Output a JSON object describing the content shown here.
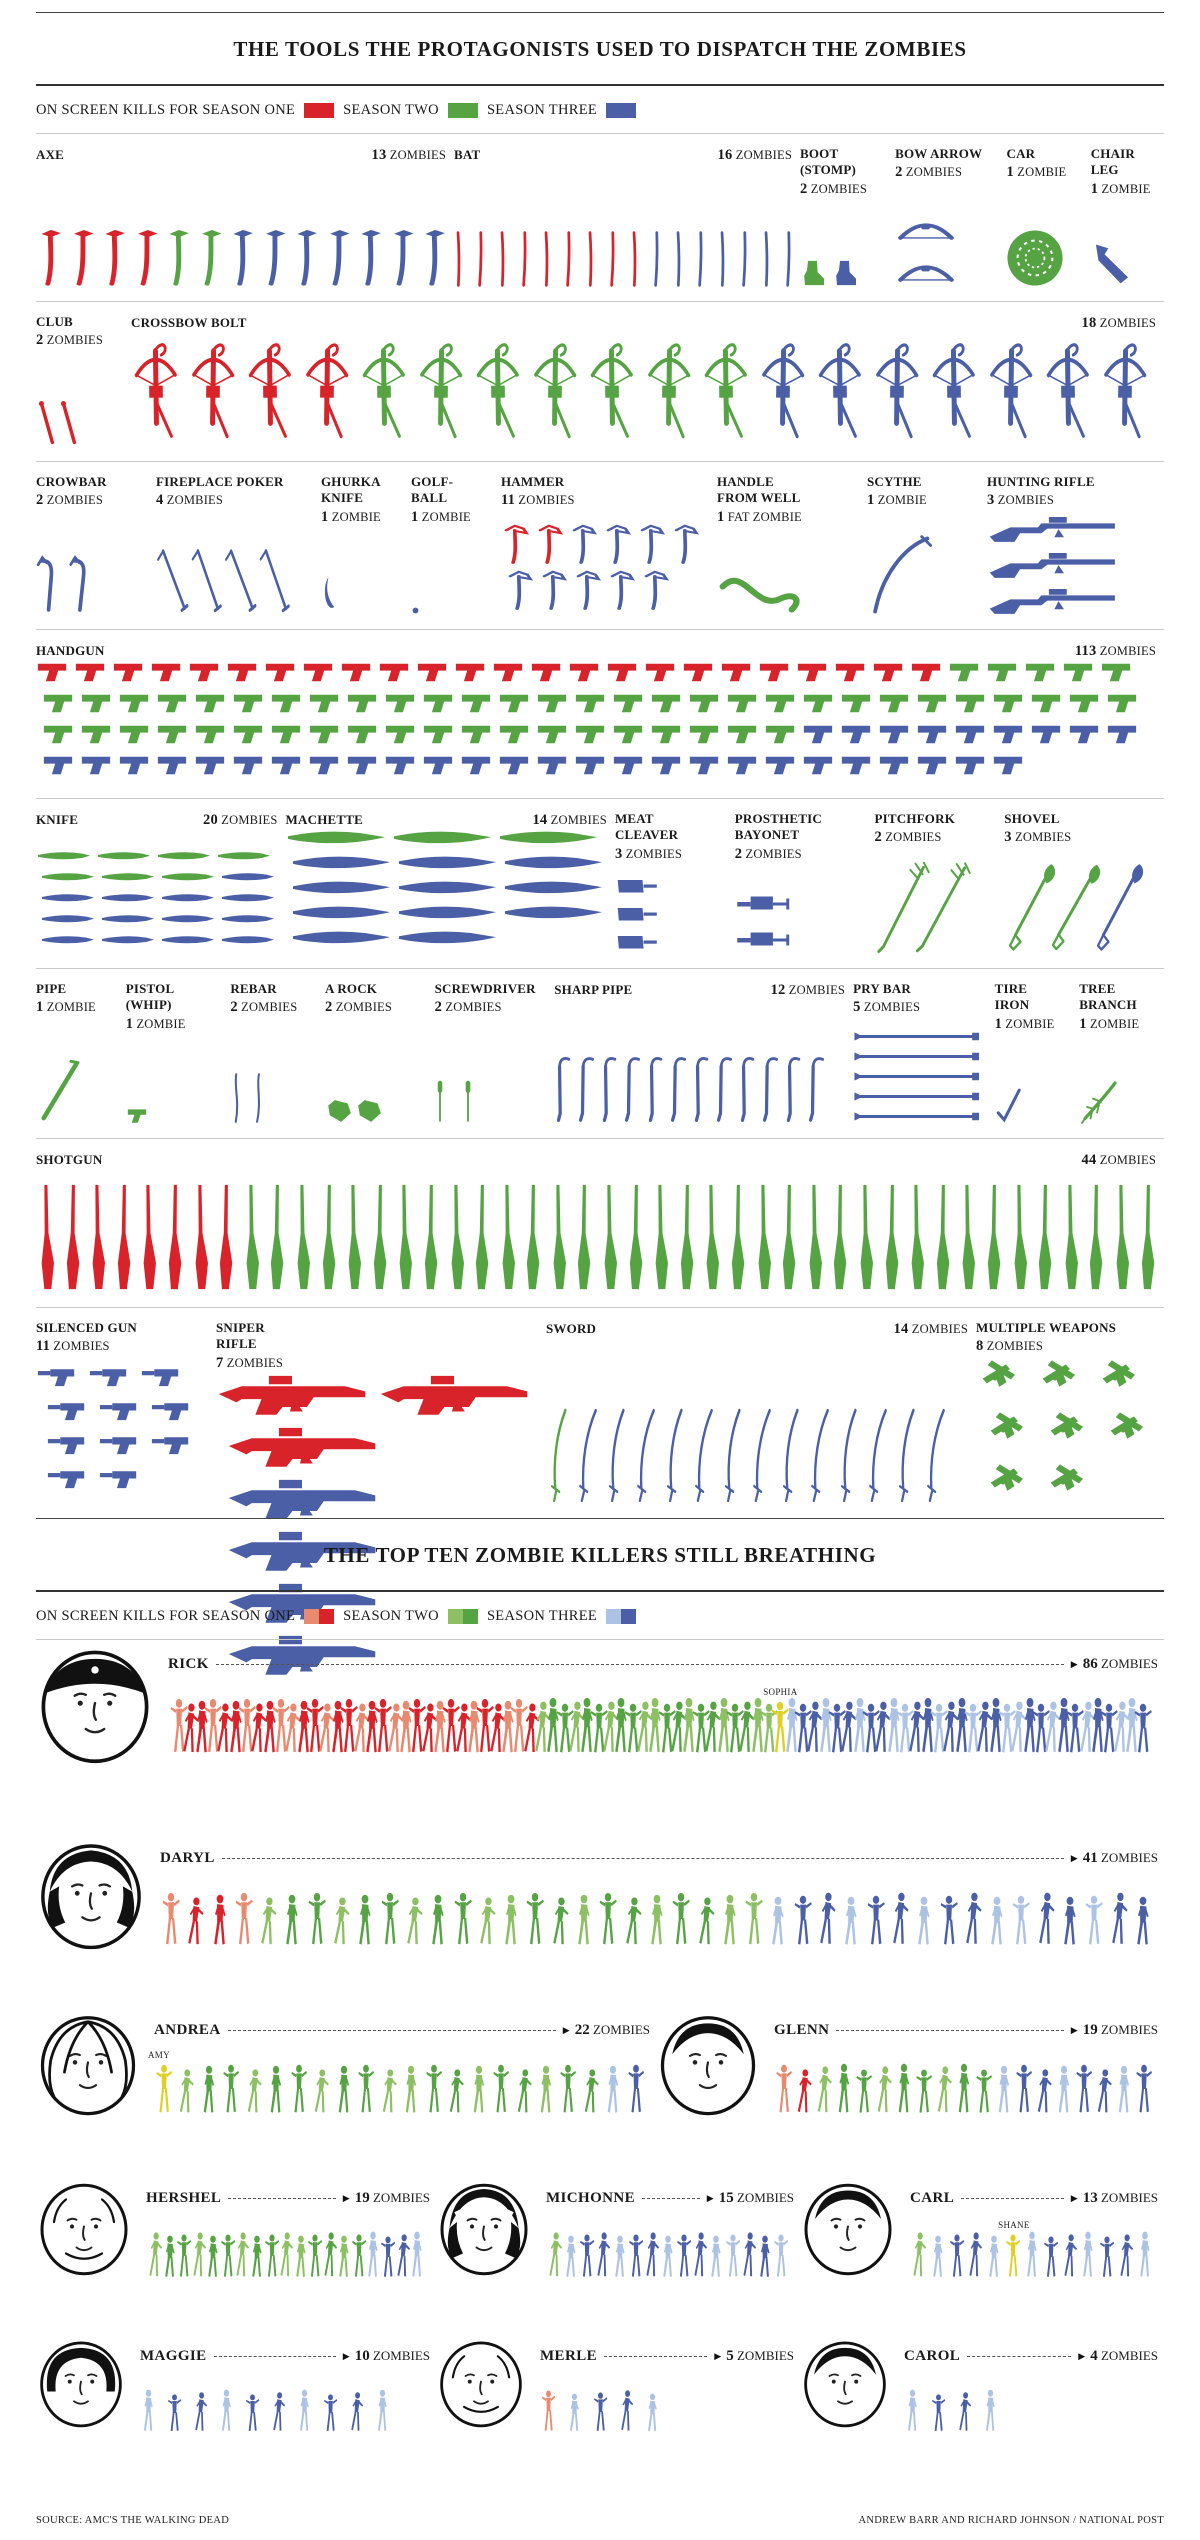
{
  "page": {
    "section1_title": "THE TOOLS THE PROTAGONISTS USED TO DISPATCH THE ZOMBIES",
    "section2_title": "THE TOP TEN ZOMBIE KILLERS STILL BREATHING",
    "source": "SOURCE: AMC'S  THE WALKING DEAD",
    "credit": "ANDREW BARR AND RICHARD JOHNSON / NATIONAL POST"
  },
  "legend1": {
    "season1_label": "ON SCREEN KILLS FOR SEASON ONE",
    "season2_label": "SEASON TWO",
    "season3_label": "SEASON THREE"
  },
  "legend2": {
    "season1_label": "ON SCREEN KILLS FOR SEASON ONE",
    "season2_label": "SEASON TWO",
    "season3_label": "SEASON THREE"
  },
  "colors": {
    "season1": "#d9232a",
    "season1_light": "#e88a70",
    "season2": "#56a344",
    "season2_light": "#8cc063",
    "season3": "#4a5fa5",
    "season3_light": "#adc3e4",
    "highlight": "#e0d026",
    "text": "#1a1a1a"
  },
  "chart_data": {
    "type": "pictogram",
    "unit": "on-screen zombie kills",
    "seasons": [
      "SEASON ONE",
      "SEASON TWO",
      "SEASON THREE"
    ],
    "weapon_rows": [
      [
        {
          "id": "axe",
          "name": [
            "AXE"
          ],
          "count": 13,
          "unit": "ZOMBIES",
          "label": "inline",
          "icon": "axe",
          "seasons": {
            "season1": 4,
            "season2": 2,
            "season3": 7
          }
        },
        {
          "id": "bat",
          "name": [
            "BAT"
          ],
          "count": 16,
          "unit": "ZOMBIES",
          "label": "inline",
          "icon": "bat",
          "seasons": {
            "season1": 9,
            "season2": 0,
            "season3": 7
          }
        },
        {
          "id": "boot",
          "name": [
            "BOOT",
            "(STOMP)"
          ],
          "count": 2,
          "unit": "ZOMBIES",
          "label": "stack",
          "icon": "boot",
          "seasons": {
            "season1": 0,
            "season2": 1,
            "season3": 1
          }
        },
        {
          "id": "bowarrow",
          "name": [
            "BOW ARROW"
          ],
          "count": 2,
          "unit": "ZOMBIES",
          "label": "stack",
          "icon": "bow",
          "seasons": {
            "season1": 0,
            "season2": 0,
            "season3": 2
          }
        },
        {
          "id": "car",
          "name": [
            "CAR"
          ],
          "count": 1,
          "unit": "ZOMBIE",
          "label": "stack",
          "icon": "wheel",
          "seasons": {
            "season1": 0,
            "season2": 1,
            "season3": 0
          }
        },
        {
          "id": "chairleg",
          "name": [
            "CHAIR",
            "LEG"
          ],
          "count": 1,
          "unit": "ZOMBIE",
          "label": "stack",
          "icon": "chairleg",
          "seasons": {
            "season1": 0,
            "season2": 0,
            "season3": 1
          }
        }
      ],
      [
        {
          "id": "club",
          "name": [
            "CLUB"
          ],
          "count": 2,
          "unit": "ZOMBIES",
          "label": "stack",
          "icon": "club",
          "seasons": {
            "season1": 2,
            "season2": 0,
            "season3": 0
          }
        },
        {
          "id": "crossbow",
          "name": [
            "CROSSBOW BOLT"
          ],
          "count": 18,
          "unit": "ZOMBIES",
          "label": "inline",
          "icon": "crossbow",
          "seasons": {
            "season1": 4,
            "season2": 7,
            "season3": 7
          }
        }
      ],
      [
        {
          "id": "crowbar",
          "name": [
            "CROWBAR"
          ],
          "count": 2,
          "unit": "ZOMBIES",
          "label": "stack",
          "icon": "crowbar",
          "seasons": {
            "season1": 0,
            "season2": 0,
            "season3": 2
          }
        },
        {
          "id": "poker",
          "name": [
            "FIREPLACE POKER"
          ],
          "count": 4,
          "unit": "ZOMBIES",
          "label": "stack",
          "icon": "poker",
          "seasons": {
            "season1": 0,
            "season2": 0,
            "season3": 4
          }
        },
        {
          "id": "ghurka",
          "name": [
            "GHURKA",
            "KNIFE"
          ],
          "count": 1,
          "unit": "ZOMBIE",
          "label": "stack",
          "icon": "ghurka",
          "seasons": {
            "season1": 0,
            "season2": 0,
            "season3": 1
          }
        },
        {
          "id": "golfball",
          "name": [
            "GOLF-",
            "BALL"
          ],
          "count": 1,
          "unit": "ZOMBIE",
          "label": "stack",
          "icon": "golf",
          "seasons": {
            "season1": 0,
            "season2": 0,
            "season3": 1
          }
        },
        {
          "id": "hammer",
          "name": [
            "HAMMER"
          ],
          "count": 11,
          "unit": "ZOMBIES",
          "label": "stack",
          "icon": "hammer",
          "seasons": {
            "season1": 2,
            "season2": 0,
            "season3": 9
          }
        },
        {
          "id": "wellhandle",
          "name": [
            "HANDLE",
            "FROM WELL"
          ],
          "count": 1,
          "unit": "FAT ZOMBIE",
          "label": "stack",
          "icon": "wellhandle",
          "seasons": {
            "season1": 0,
            "season2": 1,
            "season3": 0
          }
        },
        {
          "id": "scythe",
          "name": [
            "SCYTHE"
          ],
          "count": 1,
          "unit": "ZOMBIE",
          "label": "stack",
          "icon": "scythe",
          "seasons": {
            "season1": 0,
            "season2": 0,
            "season3": 1
          }
        },
        {
          "id": "huntingrifle",
          "name": [
            "HUNTING RIFLE"
          ],
          "count": 3,
          "unit": "ZOMBIES",
          "label": "stack",
          "icon": "huntingrifle",
          "seasons": {
            "season1": 0,
            "season2": 0,
            "season3": 3
          }
        }
      ],
      [
        {
          "id": "handgun",
          "name": [
            "HANDGUN"
          ],
          "count": 113,
          "unit": "ZOMBIES",
          "label": "inline",
          "icon": "handgun",
          "seasons": {
            "season1": 24,
            "season2": 54,
            "season3": 35
          }
        }
      ],
      [
        {
          "id": "knife",
          "name": [
            "KNIFE"
          ],
          "count": 20,
          "unit": "ZOMBIES",
          "label": "inline",
          "icon": "knife",
          "seasons": {
            "season1": 0,
            "season2": 7,
            "season3": 13
          }
        },
        {
          "id": "machete",
          "name": [
            "MACHETTE"
          ],
          "count": 14,
          "unit": "ZOMBIES",
          "label": "inline",
          "icon": "machete",
          "seasons": {
            "season1": 0,
            "season2": 3,
            "season3": 11
          }
        },
        {
          "id": "cleaver",
          "name": [
            "MEAT",
            "CLEAVER"
          ],
          "count": 3,
          "unit": "ZOMBIES",
          "label": "stack",
          "icon": "cleaver",
          "seasons": {
            "season1": 0,
            "season2": 0,
            "season3": 3
          }
        },
        {
          "id": "bayonet",
          "name": [
            "PROSTHETIC",
            "BAYONET"
          ],
          "count": 2,
          "unit": "ZOMBIES",
          "label": "stack",
          "icon": "bayonet",
          "seasons": {
            "season1": 0,
            "season2": 0,
            "season3": 2
          }
        },
        {
          "id": "pitchfork",
          "name": [
            "PITCHFORK"
          ],
          "count": 2,
          "unit": "ZOMBIES",
          "label": "stack",
          "icon": "pitchfork",
          "seasons": {
            "season1": 0,
            "season2": 2,
            "season3": 0
          }
        },
        {
          "id": "shovel",
          "name": [
            "SHOVEL"
          ],
          "count": 3,
          "unit": "ZOMBIES",
          "label": "stack",
          "icon": "shovel",
          "seasons": {
            "season1": 0,
            "season2": 2,
            "season3": 1
          }
        }
      ],
      [
        {
          "id": "pipe",
          "name": [
            "PIPE"
          ],
          "count": 1,
          "unit": "ZOMBIE",
          "label": "stack",
          "icon": "pipe",
          "seasons": {
            "season1": 0,
            "season2": 1,
            "season3": 0
          }
        },
        {
          "id": "pistolwhip",
          "name": [
            "PISTOL",
            "(WHIP)"
          ],
          "count": 1,
          "unit": "ZOMBIE",
          "label": "stack",
          "icon": "pistolwhip",
          "seasons": {
            "season1": 0,
            "season2": 1,
            "season3": 0
          }
        },
        {
          "id": "rebar",
          "name": [
            "REBAR"
          ],
          "count": 2,
          "unit": "ZOMBIES",
          "label": "stack",
          "icon": "rebar",
          "seasons": {
            "season1": 0,
            "season2": 0,
            "season3": 2
          }
        },
        {
          "id": "rock",
          "name": [
            "A ROCK"
          ],
          "count": 2,
          "unit": "ZOMBIES",
          "label": "stack",
          "icon": "rock",
          "seasons": {
            "season1": 0,
            "season2": 2,
            "season3": 0
          }
        },
        {
          "id": "screwdriver",
          "name": [
            "SCREWDRIVER"
          ],
          "count": 2,
          "unit": "ZOMBIES",
          "label": "stack",
          "icon": "screwdriver",
          "seasons": {
            "season1": 0,
            "season2": 2,
            "season3": 0
          }
        },
        {
          "id": "sharppipe",
          "name": [
            "SHARP PIPE"
          ],
          "count": 12,
          "unit": "ZOMBIES",
          "label": "inline",
          "icon": "sharppipe",
          "seasons": {
            "season1": 0,
            "season2": 0,
            "season3": 12
          }
        },
        {
          "id": "prybar",
          "name": [
            "PRY BAR"
          ],
          "count": 5,
          "unit": "ZOMBIES",
          "label": "stack",
          "icon": "prybar",
          "seasons": {
            "season1": 0,
            "season2": 0,
            "season3": 5
          }
        },
        {
          "id": "tireiron",
          "name": [
            "TIRE",
            "IRON"
          ],
          "count": 1,
          "unit": "ZOMBIE",
          "label": "stack",
          "icon": "tireiron",
          "seasons": {
            "season1": 0,
            "season2": 0,
            "season3": 1
          }
        },
        {
          "id": "branch",
          "name": [
            "TREE",
            "BRANCH"
          ],
          "count": 1,
          "unit": "ZOMBIE",
          "label": "stack",
          "icon": "branch",
          "seasons": {
            "season1": 0,
            "season2": 1,
            "season3": 0
          }
        }
      ],
      [
        {
          "id": "shotgun",
          "name": [
            "SHOTGUN"
          ],
          "count": 44,
          "unit": "ZOMBIES",
          "label": "inline",
          "icon": "shotgun",
          "seasons": {
            "season1": 8,
            "season2": 36,
            "season3": 0
          }
        }
      ],
      [
        {
          "id": "silencedgun",
          "name": [
            "SILENCED GUN"
          ],
          "count": 11,
          "unit": "ZOMBIES",
          "label": "stack",
          "icon": "silenced",
          "seasons": {
            "season1": 0,
            "season2": 0,
            "season3": 11
          }
        },
        {
          "id": "sniper",
          "name": [
            "SNIPER",
            "RIFLE"
          ],
          "count": 7,
          "unit": "ZOMBIES",
          "label": "stack",
          "icon": "sniper",
          "seasons": {
            "season1": 3,
            "season2": 0,
            "season3": 4
          }
        },
        {
          "id": "sword",
          "name": [
            "SWORD"
          ],
          "count": 14,
          "unit": "ZOMBIES",
          "label": "inline",
          "icon": "sword",
          "seasons": {
            "season1": 0,
            "season2": 1,
            "season3": 13
          }
        },
        {
          "id": "multi",
          "name": [
            "MULTIPLE WEAPONS"
          ],
          "count": 8,
          "unit": "ZOMBIES",
          "label": "stack",
          "icon": "multi",
          "seasons": {
            "season1": 0,
            "season2": 8,
            "season3": 0
          }
        }
      ]
    ],
    "killers": {
      "rick": {
        "name": "RICK",
        "count": 86,
        "unit": "ZOMBIES",
        "segments": [
          {
            "season": 1,
            "n": 32
          },
          {
            "season": 2,
            "n": 21
          },
          {
            "special": "SOPHIA"
          },
          {
            "season": 3,
            "n": 32
          }
        ]
      },
      "daryl": {
        "name": "DARYL",
        "count": 41,
        "unit": "ZOMBIES",
        "segments": [
          {
            "season": 1,
            "n": 4
          },
          {
            "season": 2,
            "n": 21
          },
          {
            "season": 3,
            "n": 16
          }
        ]
      },
      "andrea": {
        "name": "ANDREA",
        "count": 22,
        "unit": "ZOMBIES",
        "segments": [
          {
            "special": "AMY"
          },
          {
            "season": 2,
            "n": 19
          },
          {
            "season": 3,
            "n": 2
          }
        ]
      },
      "glenn": {
        "name": "GLENN",
        "count": 19,
        "unit": "ZOMBIES",
        "segments": [
          {
            "season": 1,
            "n": 2
          },
          {
            "season": 2,
            "n": 9
          },
          {
            "season": 3,
            "n": 8
          }
        ]
      },
      "hershel": {
        "name": "HERSHEL",
        "count": 19,
        "unit": "ZOMBIES",
        "segments": [
          {
            "season": 2,
            "n": 15
          },
          {
            "season": 3,
            "n": 4
          }
        ]
      },
      "michonne": {
        "name": "MICHONNE",
        "count": 15,
        "unit": "ZOMBIES",
        "segments": [
          {
            "season": 2,
            "n": 1
          },
          {
            "season": 3,
            "n": 14
          }
        ]
      },
      "carl": {
        "name": "CARL",
        "count": 13,
        "unit": "ZOMBIES",
        "segments": [
          {
            "season": 2,
            "n": 1
          },
          {
            "season": 3,
            "n": 4
          },
          {
            "special": "SHANE"
          },
          {
            "season": 3,
            "n": 7
          }
        ]
      },
      "maggie": {
        "name": "MAGGIE",
        "count": 10,
        "unit": "ZOMBIES",
        "segments": [
          {
            "season": 3,
            "n": 10
          }
        ]
      },
      "merle": {
        "name": "MERLE",
        "count": 5,
        "unit": "ZOMBIES",
        "segments": [
          {
            "season": 1,
            "n": 1
          },
          {
            "season": 3,
            "n": 4
          }
        ]
      },
      "carol": {
        "name": "CAROL",
        "count": 4,
        "unit": "ZOMBIES",
        "segments": [
          {
            "season": 3,
            "n": 4
          }
        ]
      }
    },
    "killer_rows": [
      [
        "rick"
      ],
      [
        "daryl"
      ],
      [
        "andrea",
        "glenn"
      ],
      [
        "hershel",
        "michonne",
        "carl"
      ],
      [
        "maggie",
        "merle",
        "carol"
      ]
    ]
  }
}
